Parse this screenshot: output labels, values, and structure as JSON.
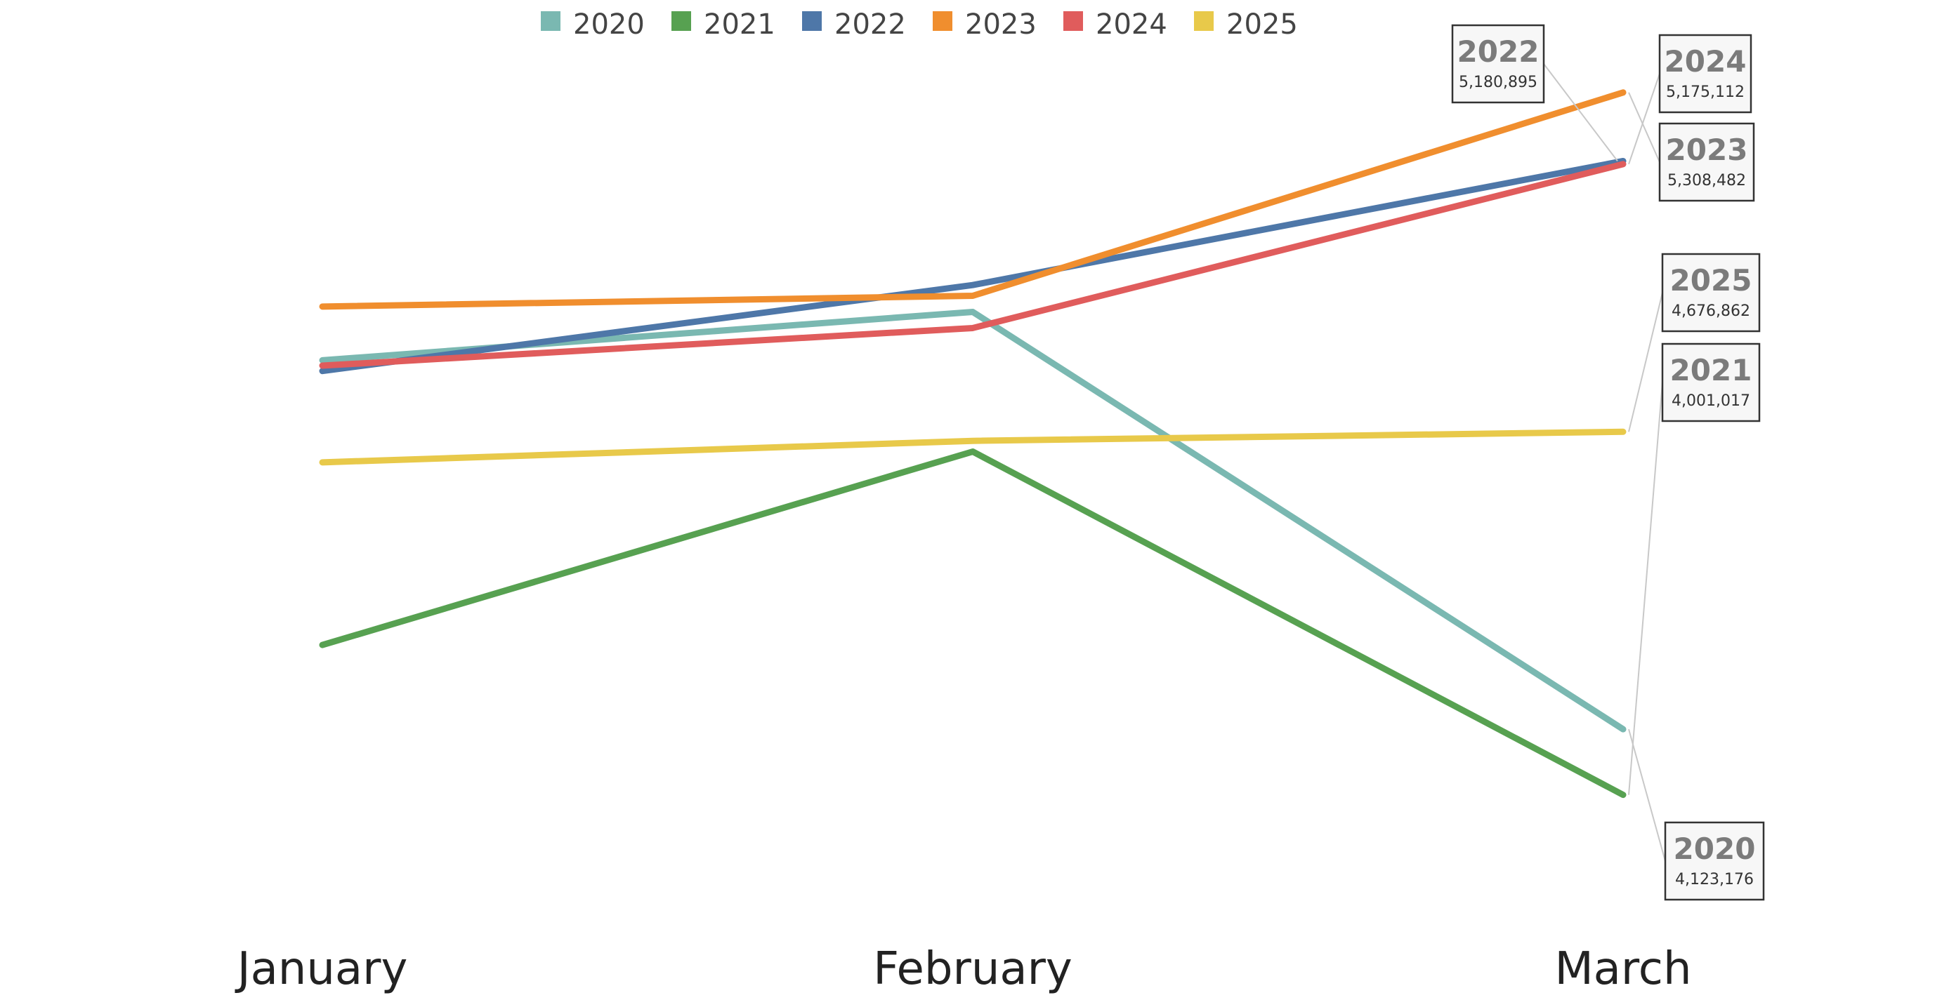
{
  "chart_data": {
    "type": "line",
    "categories": [
      "January",
      "February",
      "March"
    ],
    "ylim": [
      3900000,
      5350000
    ],
    "grid": false,
    "legend_position": "top",
    "series": [
      {
        "name": "2020",
        "color": "#7ab8b1",
        "values": [
          4810000,
          4900000,
          4123176
        ]
      },
      {
        "name": "2021",
        "color": "#57a151",
        "values": [
          4280000,
          4640000,
          4001017
        ]
      },
      {
        "name": "2022",
        "color": "#4e77a8",
        "values": [
          4790000,
          4950000,
          5180895
        ]
      },
      {
        "name": "2023",
        "color": "#f08e2e",
        "values": [
          4910000,
          4930000,
          5308482
        ]
      },
      {
        "name": "2024",
        "color": "#e05c5c",
        "values": [
          4800000,
          4870000,
          5175112
        ]
      },
      {
        "name": "2025",
        "color": "#e8c94a",
        "values": [
          4620000,
          4660000,
          4676862
        ]
      }
    ],
    "callouts": [
      {
        "series": "2022",
        "year": "2022",
        "value": "5,180,895"
      },
      {
        "series": "2024",
        "year": "2024",
        "value": "5,175,112"
      },
      {
        "series": "2023",
        "year": "2023",
        "value": "5,308,482"
      },
      {
        "series": "2025",
        "year": "2025",
        "value": "4,676,862"
      },
      {
        "series": "2021",
        "year": "2021",
        "value": "4,001,017"
      },
      {
        "series": "2020",
        "year": "2020",
        "value": "4,123,176"
      }
    ]
  }
}
